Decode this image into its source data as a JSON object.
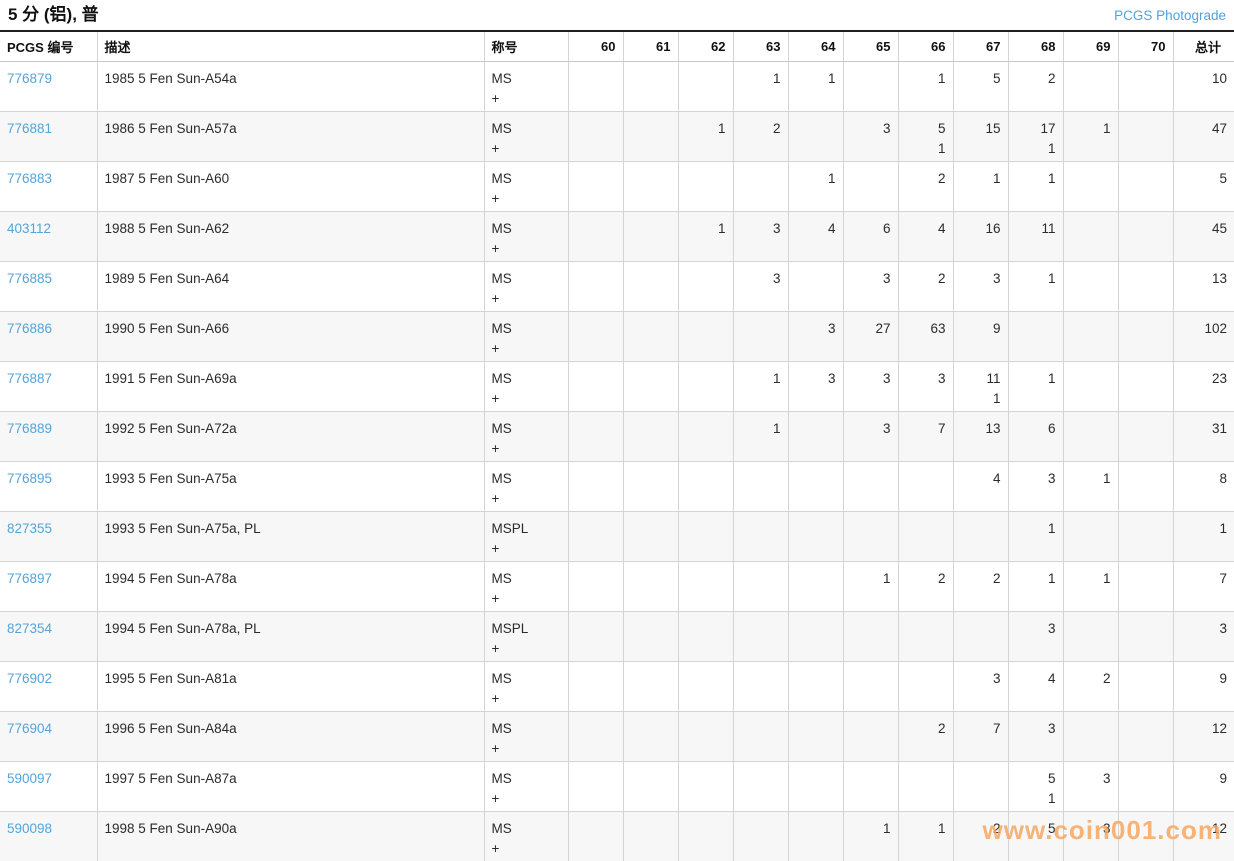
{
  "header": {
    "title": "5 分 (铝), 普",
    "photograde_link": "PCGS Photograde"
  },
  "watermark": "www.coin001.com",
  "table": {
    "col_pcgs": "PCGS 编号",
    "col_desc": "描述",
    "col_designation": "称号",
    "grades": [
      "60",
      "61",
      "62",
      "63",
      "64",
      "65",
      "66",
      "67",
      "68",
      "69",
      "70"
    ],
    "col_total": "总计",
    "rows": [
      {
        "pcgs": "776879",
        "desc": "1985 5 Fen Sun-A54a",
        "desig": [
          "MS",
          "+"
        ],
        "cells": [
          [
            "",
            ""
          ],
          [
            "",
            ""
          ],
          [
            "",
            ""
          ],
          [
            "1",
            ""
          ],
          [
            "1",
            ""
          ],
          [
            "",
            ""
          ],
          [
            "1",
            ""
          ],
          [
            "5",
            ""
          ],
          [
            "2",
            ""
          ],
          [
            "",
            ""
          ],
          [
            "",
            ""
          ]
        ],
        "total": "10"
      },
      {
        "pcgs": "776881",
        "desc": "1986 5 Fen Sun-A57a",
        "desig": [
          "MS",
          "+"
        ],
        "cells": [
          [
            "",
            ""
          ],
          [
            "",
            ""
          ],
          [
            "1",
            ""
          ],
          [
            "2",
            ""
          ],
          [
            "",
            ""
          ],
          [
            "3",
            ""
          ],
          [
            "5",
            "1"
          ],
          [
            "15",
            ""
          ],
          [
            "17",
            "1"
          ],
          [
            "1",
            ""
          ],
          [
            "",
            ""
          ]
        ],
        "total": "47"
      },
      {
        "pcgs": "776883",
        "desc": "1987 5 Fen Sun-A60",
        "desig": [
          "MS",
          "+"
        ],
        "cells": [
          [
            "",
            ""
          ],
          [
            "",
            ""
          ],
          [
            "",
            ""
          ],
          [
            "",
            ""
          ],
          [
            "1",
            ""
          ],
          [
            "",
            ""
          ],
          [
            "2",
            ""
          ],
          [
            "1",
            ""
          ],
          [
            "1",
            ""
          ],
          [
            "",
            ""
          ],
          [
            "",
            ""
          ]
        ],
        "total": "5"
      },
      {
        "pcgs": "403112",
        "desc": "1988 5 Fen Sun-A62",
        "desig": [
          "MS",
          "+"
        ],
        "cells": [
          [
            "",
            ""
          ],
          [
            "",
            ""
          ],
          [
            "1",
            ""
          ],
          [
            "3",
            ""
          ],
          [
            "4",
            ""
          ],
          [
            "6",
            ""
          ],
          [
            "4",
            ""
          ],
          [
            "16",
            ""
          ],
          [
            "11",
            ""
          ],
          [
            "",
            ""
          ],
          [
            "",
            ""
          ]
        ],
        "total": "45"
      },
      {
        "pcgs": "776885",
        "desc": "1989 5 Fen Sun-A64",
        "desig": [
          "MS",
          "+"
        ],
        "cells": [
          [
            "",
            ""
          ],
          [
            "",
            ""
          ],
          [
            "",
            ""
          ],
          [
            "3",
            ""
          ],
          [
            "",
            ""
          ],
          [
            "3",
            ""
          ],
          [
            "2",
            ""
          ],
          [
            "3",
            ""
          ],
          [
            "1",
            ""
          ],
          [
            "",
            ""
          ],
          [
            "",
            ""
          ]
        ],
        "total": "13"
      },
      {
        "pcgs": "776886",
        "desc": "1990 5 Fen Sun-A66",
        "desig": [
          "MS",
          "+"
        ],
        "cells": [
          [
            "",
            ""
          ],
          [
            "",
            ""
          ],
          [
            "",
            ""
          ],
          [
            "",
            ""
          ],
          [
            "3",
            ""
          ],
          [
            "27",
            ""
          ],
          [
            "63",
            ""
          ],
          [
            "9",
            ""
          ],
          [
            "",
            ""
          ],
          [
            "",
            ""
          ],
          [
            "",
            ""
          ]
        ],
        "total": "102"
      },
      {
        "pcgs": "776887",
        "desc": "1991 5 Fen Sun-A69a",
        "desig": [
          "MS",
          "+"
        ],
        "cells": [
          [
            "",
            ""
          ],
          [
            "",
            ""
          ],
          [
            "",
            ""
          ],
          [
            "1",
            ""
          ],
          [
            "3",
            ""
          ],
          [
            "3",
            ""
          ],
          [
            "3",
            ""
          ],
          [
            "11",
            "1"
          ],
          [
            "1",
            ""
          ],
          [
            "",
            ""
          ],
          [
            "",
            ""
          ]
        ],
        "total": "23"
      },
      {
        "pcgs": "776889",
        "desc": "1992 5 Fen Sun-A72a",
        "desig": [
          "MS",
          "+"
        ],
        "cells": [
          [
            "",
            ""
          ],
          [
            "",
            ""
          ],
          [
            "",
            ""
          ],
          [
            "1",
            ""
          ],
          [
            "",
            ""
          ],
          [
            "3",
            ""
          ],
          [
            "7",
            ""
          ],
          [
            "13",
            ""
          ],
          [
            "6",
            ""
          ],
          [
            "",
            ""
          ],
          [
            "",
            ""
          ]
        ],
        "total": "31"
      },
      {
        "pcgs": "776895",
        "desc": "1993 5 Fen Sun-A75a",
        "desig": [
          "MS",
          "+"
        ],
        "cells": [
          [
            "",
            ""
          ],
          [
            "",
            ""
          ],
          [
            "",
            ""
          ],
          [
            "",
            ""
          ],
          [
            "",
            ""
          ],
          [
            "",
            ""
          ],
          [
            "",
            ""
          ],
          [
            "4",
            ""
          ],
          [
            "3",
            ""
          ],
          [
            "1",
            ""
          ],
          [
            "",
            ""
          ]
        ],
        "total": "8"
      },
      {
        "pcgs": "827355",
        "desc": "1993 5 Fen Sun-A75a, PL",
        "desig": [
          "MSPL",
          "+"
        ],
        "cells": [
          [
            "",
            ""
          ],
          [
            "",
            ""
          ],
          [
            "",
            ""
          ],
          [
            "",
            ""
          ],
          [
            "",
            ""
          ],
          [
            "",
            ""
          ],
          [
            "",
            ""
          ],
          [
            "",
            ""
          ],
          [
            "1",
            ""
          ],
          [
            "",
            ""
          ],
          [
            "",
            ""
          ]
        ],
        "total": "1"
      },
      {
        "pcgs": "776897",
        "desc": "1994 5 Fen Sun-A78a",
        "desig": [
          "MS",
          "+"
        ],
        "cells": [
          [
            "",
            ""
          ],
          [
            "",
            ""
          ],
          [
            "",
            ""
          ],
          [
            "",
            ""
          ],
          [
            "",
            ""
          ],
          [
            "1",
            ""
          ],
          [
            "2",
            ""
          ],
          [
            "2",
            ""
          ],
          [
            "1",
            ""
          ],
          [
            "1",
            ""
          ],
          [
            "",
            ""
          ]
        ],
        "total": "7"
      },
      {
        "pcgs": "827354",
        "desc": "1994 5 Fen Sun-A78a, PL",
        "desig": [
          "MSPL",
          "+"
        ],
        "cells": [
          [
            "",
            ""
          ],
          [
            "",
            ""
          ],
          [
            "",
            ""
          ],
          [
            "",
            ""
          ],
          [
            "",
            ""
          ],
          [
            "",
            ""
          ],
          [
            "",
            ""
          ],
          [
            "",
            ""
          ],
          [
            "3",
            ""
          ],
          [
            "",
            ""
          ],
          [
            "",
            ""
          ]
        ],
        "total": "3"
      },
      {
        "pcgs": "776902",
        "desc": "1995 5 Fen Sun-A81a",
        "desig": [
          "MS",
          "+"
        ],
        "cells": [
          [
            "",
            ""
          ],
          [
            "",
            ""
          ],
          [
            "",
            ""
          ],
          [
            "",
            ""
          ],
          [
            "",
            ""
          ],
          [
            "",
            ""
          ],
          [
            "",
            ""
          ],
          [
            "3",
            ""
          ],
          [
            "4",
            ""
          ],
          [
            "2",
            ""
          ],
          [
            "",
            ""
          ]
        ],
        "total": "9"
      },
      {
        "pcgs": "776904",
        "desc": "1996 5 Fen Sun-A84a",
        "desig": [
          "MS",
          "+"
        ],
        "cells": [
          [
            "",
            ""
          ],
          [
            "",
            ""
          ],
          [
            "",
            ""
          ],
          [
            "",
            ""
          ],
          [
            "",
            ""
          ],
          [
            "",
            ""
          ],
          [
            "2",
            ""
          ],
          [
            "7",
            ""
          ],
          [
            "3",
            ""
          ],
          [
            "",
            ""
          ],
          [
            "",
            ""
          ]
        ],
        "total": "12"
      },
      {
        "pcgs": "590097",
        "desc": "1997 5 Fen Sun-A87a",
        "desig": [
          "MS",
          "+"
        ],
        "cells": [
          [
            "",
            ""
          ],
          [
            "",
            ""
          ],
          [
            "",
            ""
          ],
          [
            "",
            ""
          ],
          [
            "",
            ""
          ],
          [
            "",
            ""
          ],
          [
            "",
            ""
          ],
          [
            "",
            ""
          ],
          [
            "5",
            "1"
          ],
          [
            "3",
            ""
          ],
          [
            "",
            ""
          ]
        ],
        "total": "9"
      },
      {
        "pcgs": "590098",
        "desc": "1998 5 Fen Sun-A90a",
        "desig": [
          "MS",
          "+"
        ],
        "cells": [
          [
            "",
            ""
          ],
          [
            "",
            ""
          ],
          [
            "",
            ""
          ],
          [
            "",
            ""
          ],
          [
            "",
            ""
          ],
          [
            "1",
            ""
          ],
          [
            "1",
            ""
          ],
          [
            "2",
            ""
          ],
          [
            "5",
            ""
          ],
          [
            "3",
            ""
          ],
          [
            "",
            ""
          ]
        ],
        "total": "12"
      }
    ]
  }
}
